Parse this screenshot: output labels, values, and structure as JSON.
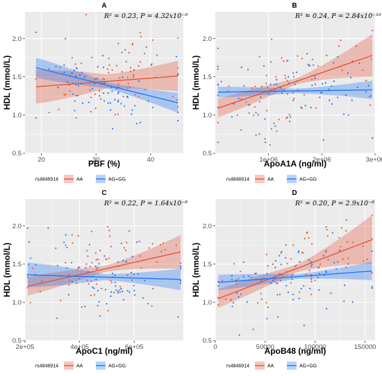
{
  "palette": {
    "AA": "#e4553a",
    "AG_GG": "#1f77f5",
    "panel_bg": "#ebebeb",
    "grid": "#ffffff"
  },
  "legend": {
    "title": "rs4846914",
    "groups": [
      "AA",
      "AG+GG"
    ]
  },
  "chart_data": [
    {
      "type": "scatter",
      "panel": "A",
      "stat_text": "R² = 0.23, P = 4.32x10⁻⁹",
      "xlabel": "PBF (%)",
      "ylabel": "HDL (mmol/L)",
      "xlim": [
        17,
        46
      ],
      "ylim": [
        0.5,
        2.35
      ],
      "xticks": [
        20,
        30,
        40
      ],
      "xtick_labels": [
        "20",
        "30",
        "40"
      ],
      "yticks": [
        0.5,
        1.0,
        1.5,
        2.0
      ],
      "ytick_labels": [
        "0.5",
        "1.0",
        "1.5",
        "2.0"
      ],
      "grid": true,
      "series": [
        {
          "name": "AA",
          "fit": {
            "x": [
              19,
              45
            ],
            "y": [
              1.37,
              1.51
            ]
          },
          "band_halfwidth": [
            0.22,
            0.09,
            0.2
          ]
        },
        {
          "name": "AG+GG",
          "fit": {
            "x": [
              19,
              45
            ],
            "y": [
              1.62,
              1.16
            ]
          },
          "band_halfwidth": [
            0.13,
            0.04,
            0.13
          ]
        }
      ]
    },
    {
      "type": "scatter",
      "panel": "B",
      "stat_text": "R² = 0.24, P = 2.84x10⁻¹⁰",
      "xlabel": "ApoA1A (ng/ml)",
      "ylabel": "HDL (mmol/L)",
      "xlim": [
        0,
        3000000
      ],
      "ylim": [
        0.5,
        2.35
      ],
      "xticks": [
        1000000,
        2000000,
        3000000
      ],
      "xtick_labels": [
        "1e+06",
        "2e+06",
        "3e+06"
      ],
      "yticks": [
        0.5,
        1.0,
        1.5,
        2.0
      ],
      "ytick_labels": [
        "0.5",
        "1.0",
        "1.5",
        "2.0"
      ],
      "grid": true,
      "series": [
        {
          "name": "AA",
          "fit": {
            "x": [
              50000,
              2950000
            ],
            "y": [
              1.09,
              1.78
            ]
          },
          "band_halfwidth": [
            0.12,
            0.04,
            0.28
          ]
        },
        {
          "name": "AG+GG",
          "fit": {
            "x": [
              50000,
              2950000
            ],
            "y": [
              1.3,
              1.33
            ]
          },
          "band_halfwidth": [
            0.07,
            0.03,
            0.12
          ]
        }
      ]
    },
    {
      "type": "scatter",
      "panel": "C",
      "stat_text": "R² = 0.22, P = 1.64x10⁻⁸",
      "xlabel": "ApoC1 (ng/ml)",
      "ylabel": "HDL (mmol/L)",
      "xlim": [
        200000,
        780000
      ],
      "ylim": [
        0.5,
        2.35
      ],
      "xticks": [
        200000,
        400000,
        600000
      ],
      "xtick_labels": [
        "2e+05",
        "4e+05",
        "6e+05"
      ],
      "yticks": [
        0.5,
        1.0,
        1.5,
        2.0
      ],
      "ytick_labels": [
        "0.5",
        "1.0",
        "1.5",
        "2.0"
      ],
      "grid": true,
      "series": [
        {
          "name": "AA",
          "fit": {
            "x": [
              210000,
              770000
            ],
            "y": [
              1.21,
              1.66
            ]
          },
          "band_halfwidth": [
            0.12,
            0.04,
            0.22
          ]
        },
        {
          "name": "AG+GG",
          "fit": {
            "x": [
              210000,
              770000
            ],
            "y": [
              1.36,
              1.3
            ]
          },
          "band_halfwidth": [
            0.16,
            0.04,
            0.14
          ]
        }
      ]
    },
    {
      "type": "scatter",
      "panel": "D",
      "stat_text": "R² = 0.20, P = 2.9x10⁻⁸",
      "xlabel": "ApoB48 (ng/ml)",
      "ylabel": "HDL (mmol/L)",
      "xlim": [
        0,
        160000
      ],
      "ylim": [
        0.5,
        2.35
      ],
      "xticks": [
        0,
        50000,
        100000,
        150000
      ],
      "xtick_labels": [
        "0",
        "50000",
        "100000",
        "150000"
      ],
      "yticks": [
        0.5,
        1.0,
        1.5,
        2.0
      ],
      "ytick_labels": [
        "0.5",
        "1.0",
        "1.5",
        "2.0"
      ],
      "grid": true,
      "series": [
        {
          "name": "AA",
          "fit": {
            "x": [
              3000,
              157000
            ],
            "y": [
              1.05,
              1.82
            ]
          },
          "band_halfwidth": [
            0.12,
            0.05,
            0.32
          ]
        },
        {
          "name": "AG+GG",
          "fit": {
            "x": [
              3000,
              157000
            ],
            "y": [
              1.26,
              1.41
            ]
          },
          "band_halfwidth": [
            0.1,
            0.03,
            0.12
          ]
        }
      ]
    }
  ]
}
